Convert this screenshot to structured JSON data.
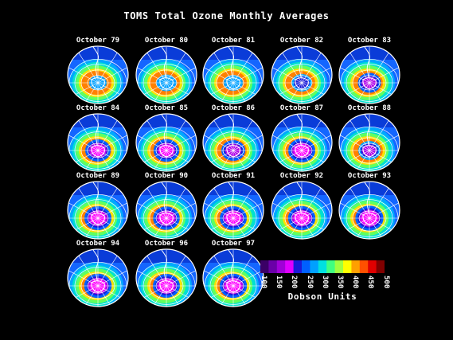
{
  "title": "TOMS Total Ozone Monthly Averages",
  "panels": [
    {
      "label": "October 79",
      "level": 0.3
    },
    {
      "label": "October 80",
      "level": 0.45
    },
    {
      "label": "October 81",
      "level": 0.4
    },
    {
      "label": "October 82",
      "level": 0.5
    },
    {
      "label": "October 83",
      "level": 0.65
    },
    {
      "label": "October 84",
      "level": 0.8
    },
    {
      "label": "October 85",
      "level": 0.82
    },
    {
      "label": "October 86",
      "level": 0.7
    },
    {
      "label": "October 87",
      "level": 0.9
    },
    {
      "label": "October 88",
      "level": 0.6
    },
    {
      "label": "October 89",
      "level": 0.9
    },
    {
      "label": "October 90",
      "level": 0.88
    },
    {
      "label": "October 91",
      "level": 0.9
    },
    {
      "label": "October 92",
      "level": 0.92
    },
    {
      "label": "October 93",
      "level": 0.97
    },
    {
      "label": "October 94",
      "level": 0.93
    },
    {
      "label": "October 96",
      "level": 0.9
    },
    {
      "label": "October 97",
      "level": 0.92
    }
  ],
  "colorbar": {
    "ticks": [
      "100",
      "150",
      "200",
      "250",
      "300",
      "350",
      "400",
      "450",
      "500"
    ],
    "colors": [
      "#3b0066",
      "#6a00a8",
      "#a000d8",
      "#e000ff",
      "#1a1ad8",
      "#0060ff",
      "#00a0ff",
      "#00e0e0",
      "#40ff80",
      "#a0ff40",
      "#ffff00",
      "#ffa000",
      "#ff5000",
      "#e00000",
      "#800000"
    ],
    "units_label": "Dobson Units"
  }
}
